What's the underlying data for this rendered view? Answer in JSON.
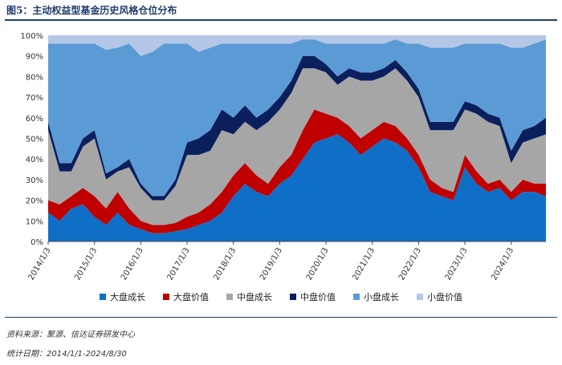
{
  "header": {
    "title": "图5：主动权益型基金历史风格仓位分布"
  },
  "footer": {
    "source": "资料来源：聚源、信达证券研发中心",
    "period": "统计日期：2014/1/1-2024/8/30"
  },
  "chart_data": {
    "type": "area",
    "stacked": true,
    "ylim": [
      0,
      100
    ],
    "y_unit": "%",
    "y_ticks": [
      "0%",
      "10%",
      "20%",
      "30%",
      "40%",
      "50%",
      "60%",
      "70%",
      "80%",
      "90%",
      "100%"
    ],
    "x_tick_labels": [
      "2014/1/3",
      "2015/1/3",
      "2016/1/3",
      "2017/1/3",
      "2018/1/3",
      "2019/1/3",
      "2020/1/3",
      "2021/1/3",
      "2022/1/3",
      "2023/1/3",
      "2024/1/3"
    ],
    "x": [
      "2014/1",
      "2014/4",
      "2014/7",
      "2014/10",
      "2015/1",
      "2015/4",
      "2015/7",
      "2015/10",
      "2016/1",
      "2016/4",
      "2016/7",
      "2016/10",
      "2017/1",
      "2017/4",
      "2017/7",
      "2017/10",
      "2018/1",
      "2018/4",
      "2018/7",
      "2018/10",
      "2019/1",
      "2019/4",
      "2019/7",
      "2019/10",
      "2020/1",
      "2020/4",
      "2020/7",
      "2020/10",
      "2021/1",
      "2021/4",
      "2021/7",
      "2021/10",
      "2022/1",
      "2022/4",
      "2022/7",
      "2022/10",
      "2023/1",
      "2023/4",
      "2023/7",
      "2023/10",
      "2024/1",
      "2024/4",
      "2024/7",
      "2024/8"
    ],
    "legend_position": "bottom",
    "series": [
      {
        "name": "大盘成长",
        "color": "#0f6fc6",
        "values": [
          14,
          10,
          16,
          18,
          12,
          8,
          14,
          8,
          6,
          4,
          4,
          5,
          6,
          8,
          10,
          14,
          22,
          28,
          24,
          22,
          28,
          32,
          40,
          48,
          50,
          52,
          48,
          42,
          46,
          50,
          48,
          44,
          36,
          24,
          22,
          20,
          36,
          28,
          24,
          26,
          20,
          24,
          24,
          22
        ]
      },
      {
        "name": "大盘价值",
        "color": "#c00000",
        "values": [
          6,
          8,
          6,
          8,
          10,
          8,
          10,
          8,
          4,
          4,
          4,
          4,
          6,
          6,
          8,
          10,
          10,
          10,
          8,
          6,
          8,
          10,
          14,
          16,
          12,
          8,
          8,
          8,
          8,
          8,
          8,
          6,
          6,
          6,
          4,
          4,
          6,
          6,
          4,
          4,
          4,
          6,
          4,
          6
        ]
      },
      {
        "name": "中盘成长",
        "color": "#a6a6a6",
        "values": [
          34,
          16,
          12,
          20,
          28,
          14,
          10,
          20,
          16,
          12,
          12,
          18,
          30,
          28,
          26,
          30,
          20,
          20,
          22,
          30,
          28,
          30,
          30,
          20,
          20,
          16,
          24,
          28,
          24,
          22,
          28,
          28,
          28,
          24,
          28,
          30,
          22,
          28,
          30,
          26,
          14,
          18,
          22,
          24
        ]
      },
      {
        "name": "中盘价值",
        "color": "#0a1f5c",
        "values": [
          4,
          4,
          4,
          4,
          4,
          3,
          2,
          4,
          2,
          2,
          2,
          3,
          6,
          8,
          10,
          10,
          8,
          8,
          6,
          6,
          6,
          6,
          6,
          6,
          4,
          4,
          4,
          4,
          4,
          4,
          4,
          4,
          4,
          4,
          4,
          4,
          4,
          4,
          4,
          4,
          6,
          6,
          6,
          8
        ]
      },
      {
        "name": "小盘成长",
        "color": "#5b9bd5",
        "values": [
          38,
          58,
          58,
          46,
          42,
          60,
          58,
          56,
          62,
          70,
          74,
          66,
          48,
          42,
          40,
          32,
          36,
          30,
          36,
          32,
          26,
          18,
          8,
          8,
          10,
          16,
          12,
          14,
          14,
          12,
          10,
          14,
          22,
          36,
          36,
          36,
          28,
          30,
          34,
          36,
          50,
          40,
          40,
          38
        ]
      },
      {
        "name": "小盘价值",
        "color": "#b4c7e7",
        "values": [
          4,
          4,
          4,
          4,
          4,
          7,
          6,
          4,
          10,
          8,
          4,
          4,
          4,
          8,
          6,
          4,
          4,
          4,
          4,
          4,
          4,
          4,
          2,
          2,
          4,
          4,
          4,
          4,
          4,
          4,
          2,
          4,
          4,
          6,
          6,
          6,
          4,
          4,
          4,
          4,
          6,
          6,
          4,
          2
        ]
      }
    ]
  }
}
